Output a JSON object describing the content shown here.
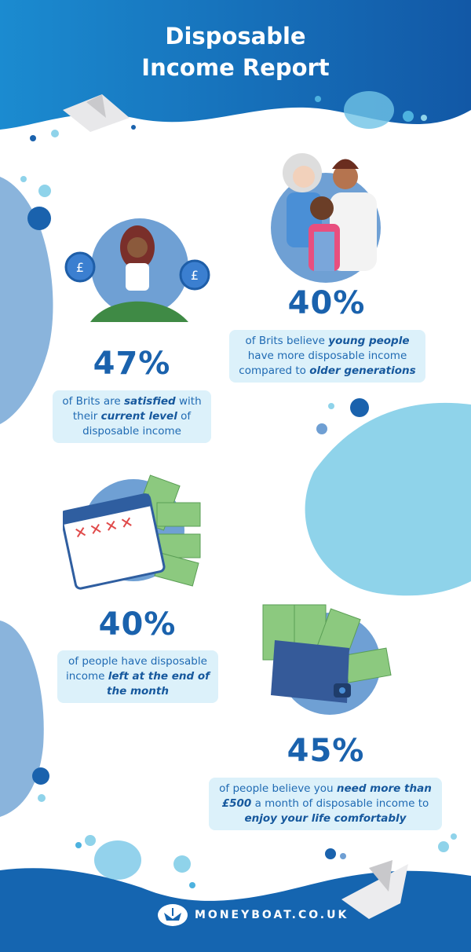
{
  "header": {
    "title_line1": "Disposable",
    "title_line2": "Income Report"
  },
  "colors": {
    "primary_blue": "#1a62ad",
    "light_box": "#dcf1fa",
    "blob_light": "#8fd3ea",
    "blob_mid": "#8ab4dc",
    "wave_dark": "#1565b0"
  },
  "stats": [
    {
      "percent": "47%",
      "illustration": "meditating-woman-with-coins-icon",
      "text": [
        {
          "t": "of Brits are ",
          "em": false
        },
        {
          "t": "satisfied",
          "em": true
        },
        {
          "t": " with their ",
          "em": false
        },
        {
          "t": "current level",
          "em": true
        },
        {
          "t": " of disposable income",
          "em": false
        }
      ]
    },
    {
      "percent": "40%",
      "illustration": "family-generations-icon",
      "text": [
        {
          "t": "of Brits believe ",
          "em": false
        },
        {
          "t": "young people",
          "em": true
        },
        {
          "t": " have more disposable income compared to ",
          "em": false
        },
        {
          "t": "older generations",
          "em": true
        }
      ]
    },
    {
      "percent": "40%",
      "illustration": "calendar-and-banknotes-icon",
      "text": [
        {
          "t": "of people have disposable income ",
          "em": false
        },
        {
          "t": "left at the end of the month",
          "em": true
        }
      ]
    },
    {
      "percent": "45%",
      "illustration": "wallet-with-banknotes-icon",
      "text": [
        {
          "t": "of people believe you ",
          "em": false
        },
        {
          "t": "need more than £500",
          "em": true
        },
        {
          "t": " a month of disposable income to ",
          "em": false
        },
        {
          "t": "enjoy your life comfortably",
          "em": true
        }
      ]
    }
  ],
  "footer": {
    "logo": "moneyboat-boat-logo",
    "site": "MONEYBOAT.CO.UK"
  }
}
